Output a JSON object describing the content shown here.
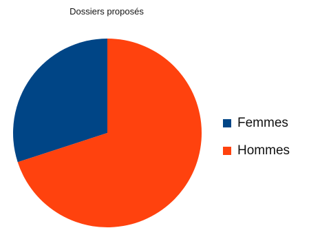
{
  "chart_data": {
    "type": "pie",
    "title": "Dossiers proposés",
    "categories": [
      "Femmes",
      "Hommes"
    ],
    "values": [
      30,
      70
    ],
    "colors": [
      "#004586",
      "#ff420e"
    ],
    "legend_position": "right",
    "start": "top, counter-clockwise"
  }
}
